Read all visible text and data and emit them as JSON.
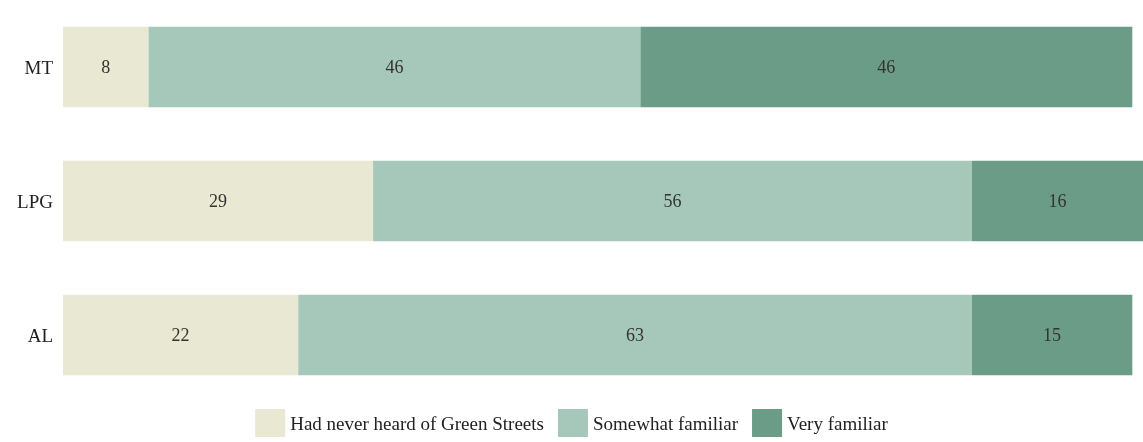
{
  "chart_data": {
    "type": "bar",
    "orientation": "horizontal",
    "stacked": true,
    "data_labels": true,
    "legend": "bottom",
    "categories": [
      "MT",
      "LPG",
      "AL"
    ],
    "series": [
      {
        "name": "Had never heard of Green Streets",
        "color": "#e9e9d3",
        "values": [
          8,
          29,
          22
        ]
      },
      {
        "name": "Somewhat familiar",
        "color": "#a6c8bb",
        "values": [
          46,
          56,
          63
        ]
      },
      {
        "name": "Very familiar",
        "color": "#6a9c87",
        "values": [
          46,
          16,
          15
        ]
      }
    ]
  }
}
